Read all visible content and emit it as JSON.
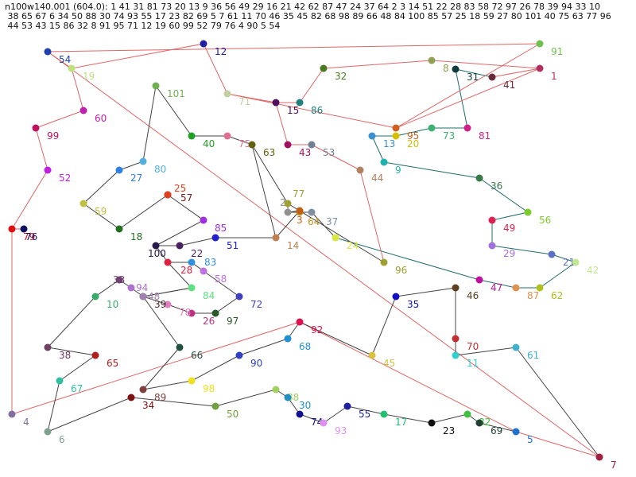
{
  "header": {
    "lines": [
      "n100w140.001 (604.0): 1 41 31 81 73 20 13 9 36 56 49 29 16 21 42 62 87 47 24 37 64 2 3 14 51 22 28 83 58 72 97 26 78 39 94 33 10",
      " 38 65 67 6 34 50 88 30 74 93 55 17 23 82 69 5 7 61 11 70 46 35 45 82 68 98 89 66 48 84 100 85 57 25 18 59 27 80 101 40 75 63 77 96",
      " 44 53 43 15 86 32 8 91 95 71 12 19 60 99 52 79 76 4 90 5 54"
    ]
  },
  "colors": {
    "red_edge": "#e06666",
    "dark_edge": "#444444",
    "teal_edge": "#1f6b6b"
  },
  "nodes": [
    {
      "id": "1",
      "c": "#b03060"
    },
    {
      "id": "41",
      "c": "#6a2a3a"
    },
    {
      "id": "31",
      "c": "#0d3b3b"
    },
    {
      "id": "81",
      "c": "#d0208a"
    },
    {
      "id": "73",
      "c": "#3cb371"
    },
    {
      "id": "20",
      "c": "#d4c000"
    },
    {
      "id": "13",
      "c": "#3a8fd0"
    },
    {
      "id": "9",
      "c": "#20b0b0"
    },
    {
      "id": "36",
      "c": "#3a7a4a"
    },
    {
      "id": "56",
      "c": "#7ccd2a"
    },
    {
      "id": "49",
      "c": "#e02050"
    },
    {
      "id": "29",
      "c": "#a070e0"
    },
    {
      "id": "21",
      "c": "#5a70c0"
    },
    {
      "id": "42",
      "c": "#c0e890"
    },
    {
      "id": "62",
      "c": "#b0c020"
    },
    {
      "id": "87",
      "c": "#e09050"
    },
    {
      "id": "47",
      "c": "#c010a0"
    },
    {
      "id": "24",
      "c": "#d8e840"
    },
    {
      "id": "37",
      "c": "#8090a0"
    },
    {
      "id": "64",
      "c": "#c09020"
    },
    {
      "id": "2",
      "c": "#909090"
    },
    {
      "id": "3",
      "c": "#c06010"
    },
    {
      "id": "14",
      "c": "#c08050"
    },
    {
      "id": "51",
      "c": "#2020d0"
    },
    {
      "id": "22",
      "c": "#4a2060"
    },
    {
      "id": "28",
      "c": "#e02040"
    },
    {
      "id": "83",
      "c": "#3090e0"
    },
    {
      "id": "58",
      "c": "#c070e0"
    },
    {
      "id": "72",
      "c": "#4040c0"
    },
    {
      "id": "97",
      "c": "#2a5a2a"
    },
    {
      "id": "26",
      "c": "#c03080"
    },
    {
      "id": "78",
      "c": "#e080c0"
    },
    {
      "id": "39",
      "c": "#4a2a2a"
    },
    {
      "id": "94",
      "c": "#b070d0"
    },
    {
      "id": "33",
      "c": "#704070"
    },
    {
      "id": "10",
      "c": "#3aaa6a"
    },
    {
      "id": "38",
      "c": "#704060"
    },
    {
      "id": "65",
      "c": "#b02020"
    },
    {
      "id": "67",
      "c": "#30c0a0"
    },
    {
      "id": "6",
      "c": "#80a090"
    },
    {
      "id": "34",
      "c": "#801010"
    },
    {
      "id": "50",
      "c": "#70a040"
    },
    {
      "id": "88",
      "c": "#a0d060"
    },
    {
      "id": "30",
      "c": "#2090c0"
    },
    {
      "id": "74",
      "c": "#101090"
    },
    {
      "id": "93",
      "c": "#e090f0"
    },
    {
      "id": "55",
      "c": "#2020a0"
    },
    {
      "id": "17",
      "c": "#20c070"
    },
    {
      "id": "23",
      "c": "#101010"
    },
    {
      "id": "82",
      "c": "#40c040"
    },
    {
      "id": "69",
      "c": "#204030"
    },
    {
      "id": "5",
      "c": "#2070d0"
    },
    {
      "id": "7",
      "c": "#a02040"
    },
    {
      "id": "61",
      "c": "#40b0d0"
    },
    {
      "id": "11",
      "c": "#30d0d0"
    },
    {
      "id": "70",
      "c": "#c03030"
    },
    {
      "id": "46",
      "c": "#604020"
    },
    {
      "id": "35",
      "c": "#1010c0"
    },
    {
      "id": "45",
      "c": "#d8c040"
    },
    {
      "id": "92",
      "c": "#e01050"
    },
    {
      "id": "68",
      "c": "#2090d0"
    },
    {
      "id": "90",
      "c": "#3040c0"
    },
    {
      "id": "98",
      "c": "#f0e020"
    },
    {
      "id": "89",
      "c": "#804040"
    },
    {
      "id": "66",
      "c": "#205040"
    },
    {
      "id": "48",
      "c": "#a080b0"
    },
    {
      "id": "84",
      "c": "#60e080"
    },
    {
      "id": "100",
      "c": "#2a1a4a"
    },
    {
      "id": "85",
      "c": "#a030e0"
    },
    {
      "id": "57",
      "c": "#702020"
    },
    {
      "id": "25",
      "c": "#e04020"
    },
    {
      "id": "18",
      "c": "#207020"
    },
    {
      "id": "59",
      "c": "#c0c040"
    },
    {
      "id": "27",
      "c": "#3080e0"
    },
    {
      "id": "80",
      "c": "#50b0e0"
    },
    {
      "id": "101",
      "c": "#70b050"
    },
    {
      "id": "40",
      "c": "#20a020"
    },
    {
      "id": "75",
      "c": "#e07090"
    },
    {
      "id": "63",
      "c": "#606010"
    },
    {
      "id": "77",
      "c": "#a0a030"
    },
    {
      "id": "96",
      "c": "#a0a030"
    },
    {
      "id": "44",
      "c": "#b08060"
    },
    {
      "id": "53",
      "c": "#708090"
    },
    {
      "id": "43",
      "c": "#a01060"
    },
    {
      "id": "15",
      "c": "#501060"
    },
    {
      "id": "86",
      "c": "#208080"
    },
    {
      "id": "32",
      "c": "#4a7a20"
    },
    {
      "id": "8",
      "c": "#90a050"
    },
    {
      "id": "91",
      "c": "#70c050"
    },
    {
      "id": "95",
      "c": "#d06020"
    },
    {
      "id": "71",
      "c": "#c0d0a0"
    },
    {
      "id": "12",
      "c": "#2020a0"
    },
    {
      "id": "19",
      "c": "#c0e080"
    },
    {
      "id": "60",
      "c": "#c020b0"
    },
    {
      "id": "99",
      "c": "#c01060"
    },
    {
      "id": "52",
      "c": "#c020e0"
    },
    {
      "id": "79",
      "c": "#e01010"
    },
    {
      "id": "76",
      "c": "#101060"
    },
    {
      "id": "4",
      "c": "#8070a0"
    },
    {
      "id": "54",
      "c": "#2040b0"
    }
  ]
}
